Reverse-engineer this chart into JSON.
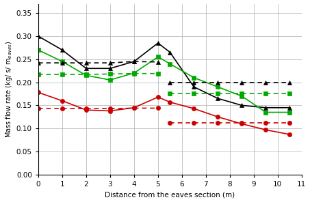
{
  "x_solid": [
    0,
    1,
    2,
    3,
    4,
    5,
    5.5,
    6.5,
    7.5,
    8.5,
    9.5,
    10.5
  ],
  "black_solid": [
    0.3,
    0.27,
    0.23,
    0.23,
    0.245,
    0.285,
    0.265,
    0.19,
    0.165,
    0.15,
    0.145,
    0.145
  ],
  "green_solid": [
    0.27,
    0.245,
    0.215,
    0.205,
    0.22,
    0.255,
    0.24,
    0.21,
    0.19,
    0.17,
    0.135,
    0.135
  ],
  "red_solid": [
    0.178,
    0.16,
    0.14,
    0.138,
    0.145,
    0.168,
    0.157,
    0.143,
    0.125,
    0.11,
    0.097,
    0.087
  ],
  "x_dashed_left": [
    0,
    1,
    2,
    3,
    4,
    5
  ],
  "x_dashed_right": [
    5.5,
    6.5,
    7.5,
    8.5,
    9.5,
    10.5
  ],
  "black_dashed_left": [
    0.242,
    0.242,
    0.242,
    0.242,
    0.245,
    0.244
  ],
  "black_dashed_right": [
    0.2,
    0.2,
    0.2,
    0.2,
    0.2,
    0.2
  ],
  "green_dashed_left": [
    0.217,
    0.217,
    0.217,
    0.218,
    0.219,
    0.219
  ],
  "green_dashed_right": [
    0.175,
    0.175,
    0.175,
    0.175,
    0.175,
    0.175
  ],
  "red_dashed_left": [
    0.143,
    0.143,
    0.143,
    0.143,
    0.144,
    0.144
  ],
  "red_dashed_right": [
    0.112,
    0.112,
    0.112,
    0.112,
    0.112,
    0.112
  ],
  "black_color": "#000000",
  "green_color": "#00AA00",
  "red_color": "#CC0000",
  "xlabel": "Distance from the eaves section (m)",
  "ylim": [
    0.0,
    0.37
  ],
  "xlim": [
    0,
    11
  ],
  "yticks": [
    0.0,
    0.05,
    0.1,
    0.15,
    0.2,
    0.25,
    0.3,
    0.35
  ],
  "xticks": [
    0,
    1,
    2,
    3,
    4,
    5,
    6,
    7,
    8,
    9,
    10,
    11
  ],
  "bg_color": "#FFFFFF",
  "grid_color": "#BBBBBB"
}
